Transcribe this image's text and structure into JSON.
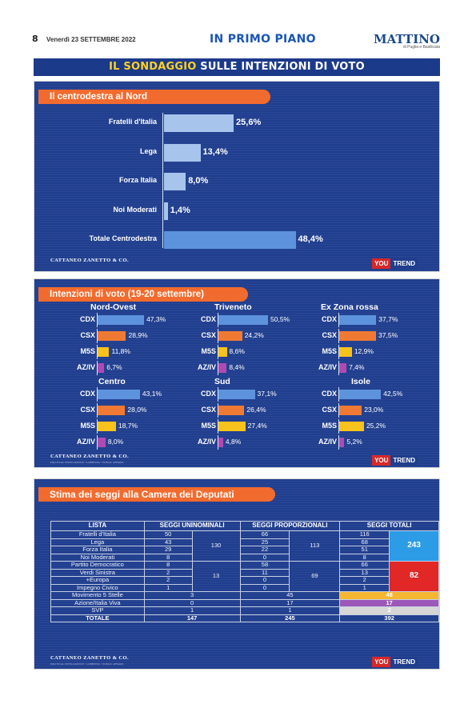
{
  "header": {
    "page_number": "8",
    "date": "Venerdì 23 SETTEMBRE 2022",
    "section": "IN PRIMO PIANO",
    "logo": "MATTINO",
    "logo_sub": "di Puglia e Basilicata"
  },
  "banner": {
    "highlight": "IL SONDAGGIO",
    "rest": " SULLE INTENZIONI DI VOTO"
  },
  "footer": {
    "source": "CATTANEO ZANETTO & CO.",
    "source_sub": "POLITICAL INTELLIGENCE • LOBBYING • PUBLIC AFFAIRS",
    "brand_a": "YOU",
    "brand_b": "TREND"
  },
  "colors": {
    "cdx": "#5d93dc",
    "csx": "#f07a33",
    "m5s": "#f7c21b",
    "aziv": "#b04ab3",
    "panel": "#213f8f",
    "title_bg": "#f26b2e"
  },
  "chart_data": [
    {
      "type": "bar",
      "title": "Il centrodestra al Nord",
      "categories": [
        "Fratelli d'Italia",
        "Lega",
        "Forza Italia",
        "Noi Moderati",
        "Totale Centrodestra"
      ],
      "values": [
        25.6,
        13.4,
        8.0,
        1.4,
        48.4
      ],
      "labels": [
        "25,6%",
        "13,4%",
        "8,0%",
        "1,4%",
        "48,4%"
      ],
      "xlim": [
        0,
        50
      ]
    },
    {
      "type": "bar",
      "title": "Intenzioni di voto (19-20 settembre)",
      "categories": [
        "CDX",
        "CSX",
        "M5S",
        "AZ/IV"
      ],
      "xlim": [
        0,
        55
      ],
      "groups": [
        {
          "name": "Nord-Ovest",
          "values": [
            47.3,
            28.9,
            11.8,
            6.7
          ],
          "labels": [
            "47,3%",
            "28,9%",
            "11,8%",
            "6,7%"
          ]
        },
        {
          "name": "Triveneto",
          "values": [
            50.5,
            24.2,
            8.6,
            8.4
          ],
          "labels": [
            "50,5%",
            "24,2%",
            "8,6%",
            "8,4%"
          ]
        },
        {
          "name": "Ex Zona rossa",
          "values": [
            37.7,
            37.5,
            12.9,
            7.4
          ],
          "labels": [
            "37,7%",
            "37,5%",
            "12,9%",
            "7,4%"
          ]
        },
        {
          "name": "Centro",
          "values": [
            43.1,
            28.0,
            18.7,
            8.0
          ],
          "labels": [
            "43,1%",
            "28,0%",
            "18,7%",
            "8,0%"
          ]
        },
        {
          "name": "Sud",
          "values": [
            37.1,
            26.4,
            27.4,
            4.8
          ],
          "labels": [
            "37,1%",
            "26,4%",
            "27,4%",
            "4,8%"
          ]
        },
        {
          "name": "Isole",
          "values": [
            42.5,
            23.0,
            25.2,
            5.2
          ],
          "labels": [
            "42,5%",
            "23,0%",
            "25,2%",
            "5,2%"
          ]
        }
      ]
    },
    {
      "type": "table",
      "title": "Stima dei seggi alla Camera dei Deputati",
      "columns": [
        "LISTA",
        "SEGGI UNINOMINALI",
        "SEGGI PROPORZIONALI",
        "SEGGI TOTALI"
      ],
      "rows": [
        {
          "lista": "Fratelli d'Italia",
          "uni": "50",
          "prop": "66",
          "tot": "116"
        },
        {
          "lista": "Lega",
          "uni": "43",
          "prop": "25",
          "tot": "68"
        },
        {
          "lista": "Forza Italia",
          "uni": "29",
          "prop": "22",
          "tot": "51"
        },
        {
          "lista": "Noi Moderati",
          "uni": "8",
          "prop": "0",
          "tot": "8"
        },
        {
          "lista": "Partito Democratico",
          "uni": "8",
          "prop": "58",
          "tot": "66"
        },
        {
          "lista": "Verdi Sinistra",
          "uni": "2",
          "prop": "11",
          "tot": "13"
        },
        {
          "lista": "+Europa",
          "uni": "2",
          "prop": "0",
          "tot": "2"
        },
        {
          "lista": "Impegno Civico",
          "uni": "1",
          "prop": "0",
          "tot": "1"
        },
        {
          "lista": "Movimento 5 Stelle",
          "uni": "3",
          "prop": "45",
          "tot": "48"
        },
        {
          "lista": "Azione/Italia Viva",
          "uni": "0",
          "prop": "17",
          "tot": "17"
        },
        {
          "lista": "SVP",
          "uni": "1",
          "prop": "1",
          "tot": "2"
        }
      ],
      "subtotals": {
        "cdx_uni": "130",
        "cdx_prop": "113",
        "cdx_tot": "243",
        "csx_uni": "13",
        "csx_prop": "69",
        "csx_tot": "82"
      },
      "totals": {
        "label": "TOTALE",
        "uni": "147",
        "prop": "245",
        "tot": "392"
      }
    }
  ]
}
